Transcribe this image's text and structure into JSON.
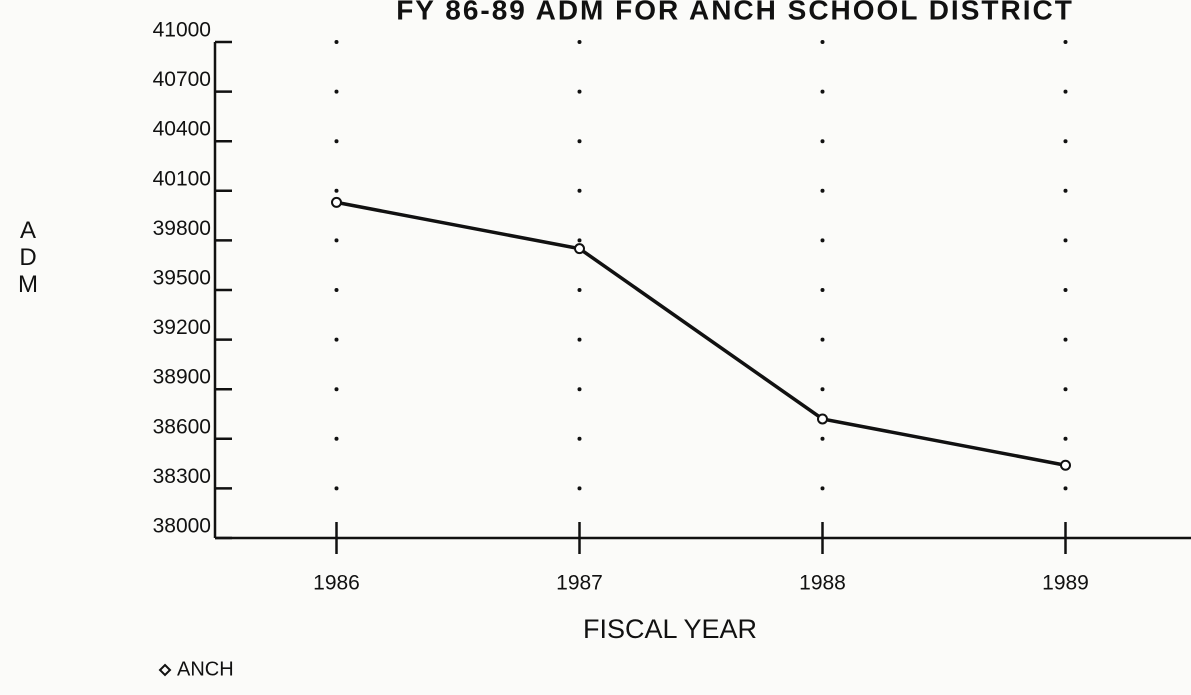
{
  "chart_data": {
    "type": "line",
    "title": "FY 86-89 ADM FOR ANCH SCHOOL DISTRICT",
    "x_label": "FISCAL YEAR",
    "y_label": "ADM",
    "categories": [
      "1986",
      "1987",
      "1988",
      "1989"
    ],
    "series": [
      {
        "name": "ANCH",
        "color": "#111111",
        "values": [
          40030,
          39750,
          38720,
          38440
        ]
      }
    ],
    "ylim": [
      38000,
      41000
    ],
    "yticks": [
      38000,
      38300,
      38600,
      38900,
      39200,
      39500,
      39800,
      40100,
      40400,
      40700,
      41000
    ],
    "grid": true,
    "legend": "bottom-left"
  }
}
